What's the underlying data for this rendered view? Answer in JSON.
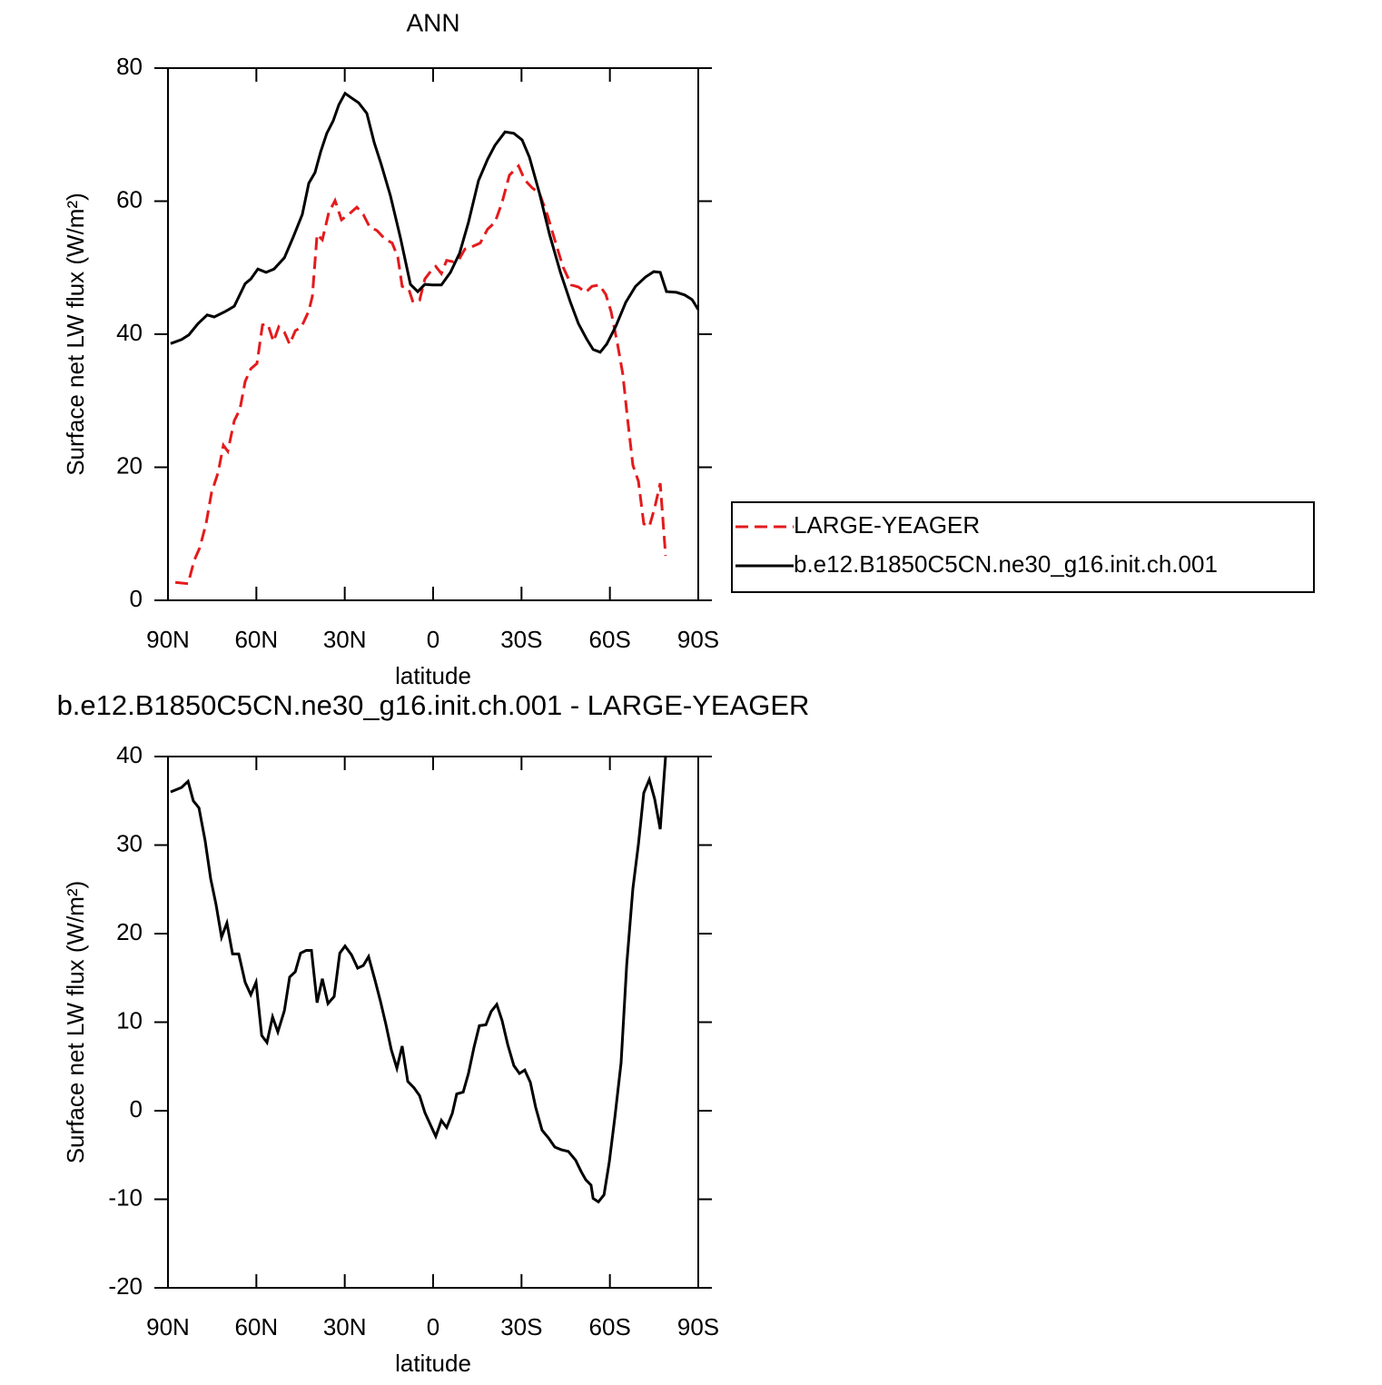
{
  "chart_data": [
    {
      "type": "line",
      "title": "ANN",
      "xlabel": "latitude",
      "ylabel": "Surface net LW flux (W/m²)",
      "xlim": [
        90,
        -90
      ],
      "xticks": [
        {
          "value": 90,
          "label": "90N"
        },
        {
          "value": 60,
          "label": "60N"
        },
        {
          "value": 30,
          "label": "30N"
        },
        0,
        {
          "value": -30,
          "label": "30S"
        },
        {
          "value": -60,
          "label": "60S"
        },
        {
          "value": -90,
          "label": "90S"
        }
      ],
      "ylim": [
        0,
        80
      ],
      "yticks": [
        0,
        20,
        40,
        60,
        80
      ],
      "legend": "right",
      "series": [
        {
          "name": "LARGE-YEAGER",
          "color": "#e41a1c",
          "style": "dashed",
          "x": [
            87.5,
            83.2,
            81.1,
            79.2,
            77.1,
            75.2,
            73.0,
            71.2,
            69.7,
            67.5,
            65.6,
            63.8,
            61.9,
            59.8,
            57.9,
            56.1,
            54.2,
            52.4,
            50.5,
            48.7,
            46.8,
            44.7,
            42.2,
            41.0,
            39.4,
            37.6,
            35.4,
            33.3,
            31.1,
            28.7,
            25.9,
            23.7,
            21.5,
            19.1,
            16.3,
            13.9,
            12.0,
            10.5,
            8.3,
            6.8,
            4.6,
            2.8,
            0.6,
            -0.9,
            -2.8,
            -4.6,
            -6.8,
            -8.6,
            -10.8,
            -13.0,
            -16.0,
            -18.5,
            -21.0,
            -23.4,
            -25.9,
            -29.0,
            -31.1,
            -33.6,
            -36.1,
            -38.8,
            -41.6,
            -44.1,
            -46.9,
            -49.3,
            -51.8,
            -53.9,
            -56.4,
            -58.6,
            -60.4,
            -62.6,
            -64.4,
            -66.0,
            -67.8,
            -69.7,
            -71.5,
            -73.4,
            -75.2,
            -77.1,
            -78.9
          ],
          "values": [
            2.7,
            2.5,
            6.0,
            7.9,
            11.5,
            16.2,
            19.2,
            23.3,
            22.4,
            27.0,
            28.7,
            32.9,
            34.8,
            35.6,
            41.4,
            41.5,
            38.9,
            41.1,
            40.3,
            38.5,
            40.5,
            41.1,
            43.5,
            45.7,
            55.0,
            54.2,
            58.3,
            60.1,
            57.2,
            58.0,
            59.1,
            58.0,
            56.1,
            55.6,
            54.3,
            53.7,
            51.6,
            47.2,
            46.8,
            44.8,
            45.1,
            48.3,
            49.6,
            50.2,
            49.1,
            51.1,
            50.9,
            51.1,
            52.8,
            53.1,
            53.7,
            55.8,
            56.8,
            59.8,
            63.9,
            65.3,
            63.2,
            62.0,
            61.2,
            57.9,
            53.7,
            50.1,
            47.4,
            47.1,
            46.3,
            47.2,
            47.4,
            46.0,
            43.4,
            38.5,
            34.0,
            27.3,
            20.3,
            17.9,
            11.5,
            11.1,
            13.9,
            17.6,
            6.7
          ]
        },
        {
          "name": "b.e12.B1850C5CN.ne30_g16.init.ch.001",
          "color": "#000000",
          "style": "solid",
          "x": [
            89.1,
            85.4,
            82.9,
            79.8,
            76.7,
            74.3,
            70.6,
            67.5,
            63.8,
            61.9,
            59.5,
            56.7,
            54.0,
            50.5,
            47.5,
            44.4,
            42.2,
            40.1,
            38.2,
            36.1,
            33.9,
            32.0,
            29.9,
            28.0,
            25.3,
            22.5,
            20.0,
            17.6,
            14.5,
            11.1,
            9.5,
            7.7,
            5.2,
            2.8,
            0.3,
            -2.8,
            -5.9,
            -9.0,
            -12.0,
            -15.4,
            -18.5,
            -21.0,
            -24.4,
            -27.4,
            -30.2,
            -32.7,
            -36.1,
            -39.5,
            -43.2,
            -46.6,
            -49.3,
            -52.1,
            -54.3,
            -56.7,
            -58.9,
            -62.0,
            -65.4,
            -68.7,
            -72.1,
            -74.9,
            -77.1,
            -79.2,
            -82.6,
            -85.4,
            -87.9,
            -90.0
          ],
          "values": [
            38.6,
            39.2,
            39.9,
            41.6,
            42.9,
            42.6,
            43.4,
            44.2,
            47.6,
            48.3,
            49.8,
            49.3,
            49.8,
            51.5,
            54.6,
            58.0,
            62.7,
            64.3,
            67.4,
            70.2,
            72.1,
            74.5,
            76.2,
            75.6,
            74.8,
            73.2,
            68.8,
            65.5,
            60.8,
            54.5,
            51.2,
            47.5,
            46.4,
            47.5,
            47.4,
            47.4,
            49.3,
            52.2,
            56.8,
            63.1,
            66.3,
            68.4,
            70.4,
            70.2,
            69.2,
            66.6,
            61.2,
            55.0,
            49.3,
            44.8,
            41.6,
            39.3,
            37.7,
            37.3,
            38.5,
            41.2,
            44.8,
            47.2,
            48.6,
            49.4,
            49.3,
            46.4,
            46.3,
            45.9,
            45.2,
            43.7
          ]
        }
      ]
    },
    {
      "type": "line",
      "title": "b.e12.B1850C5CN.ne30_g16.init.ch.001 - LARGE-YEAGER",
      "xlabel": "latitude",
      "ylabel": "Surface net LW flux (W/m²)",
      "xlim": [
        90,
        -90
      ],
      "xticks": [
        {
          "value": 90,
          "label": "90N"
        },
        {
          "value": 60,
          "label": "60N"
        },
        {
          "value": 30,
          "label": "30N"
        },
        0,
        {
          "value": -30,
          "label": "30S"
        },
        {
          "value": -60,
          "label": "60S"
        },
        {
          "value": -90,
          "label": "90S"
        }
      ],
      "ylim": [
        -20,
        40
      ],
      "yticks": [
        -20,
        -10,
        0,
        10,
        20,
        30,
        40
      ],
      "series": [
        {
          "color": "#000000",
          "style": "solid",
          "x": [
            89.1,
            85.4,
            83.2,
            81.4,
            79.5,
            77.4,
            75.5,
            73.7,
            71.8,
            70.0,
            68.1,
            66.0,
            63.8,
            61.9,
            60.1,
            58.2,
            56.4,
            54.5,
            52.7,
            50.5,
            48.7,
            46.8,
            45.0,
            43.1,
            41.3,
            39.4,
            37.6,
            35.7,
            33.6,
            31.7,
            29.9,
            27.7,
            25.6,
            23.7,
            21.9,
            19.7,
            17.9,
            16.0,
            14.2,
            12.3,
            10.5,
            8.6,
            6.5,
            4.6,
            2.8,
            0.9,
            -0.9,
            -2.8,
            -4.6,
            -6.5,
            -8.0,
            -10.2,
            -12.0,
            -13.9,
            -15.7,
            -17.9,
            -19.7,
            -21.6,
            -23.4,
            -25.3,
            -27.4,
            -29.3,
            -31.1,
            -33.0,
            -34.8,
            -37.0,
            -39.2,
            -41.3,
            -43.5,
            -45.9,
            -48.4,
            -50.3,
            -51.8,
            -53.6,
            -54.3,
            -56.1,
            -58.0,
            -59.8,
            -61.7,
            -63.8,
            -65.7,
            -67.8,
            -69.7,
            -71.5,
            -73.4,
            -75.2,
            -77.1,
            -78.9
          ],
          "values": [
            36.0,
            36.5,
            37.2,
            35.0,
            34.2,
            30.5,
            26.2,
            23.3,
            19.6,
            21.2,
            17.7,
            17.7,
            14.5,
            13.1,
            14.5,
            8.5,
            7.7,
            10.6,
            8.9,
            11.3,
            15.1,
            15.7,
            17.8,
            18.1,
            18.1,
            12.2,
            14.9,
            12.1,
            12.9,
            17.8,
            18.6,
            17.6,
            16.1,
            16.4,
            17.4,
            14.7,
            12.4,
            9.7,
            6.9,
            4.8,
            7.3,
            3.3,
            2.6,
            1.7,
            -0.2,
            -1.6,
            -2.9,
            -1.1,
            -1.9,
            -0.3,
            1.9,
            2.1,
            4.2,
            7.2,
            9.6,
            9.7,
            11.2,
            12.0,
            10.2,
            7.5,
            5.1,
            4.2,
            4.6,
            3.2,
            0.4,
            -2.2,
            -3.1,
            -4.1,
            -4.4,
            -4.6,
            -5.6,
            -6.9,
            -7.8,
            -8.4,
            -9.9,
            -10.3,
            -9.5,
            -5.8,
            -0.7,
            5.4,
            16.5,
            25.1,
            30.1,
            35.9,
            37.4,
            35.2,
            31.8,
            40.0
          ]
        }
      ]
    }
  ]
}
